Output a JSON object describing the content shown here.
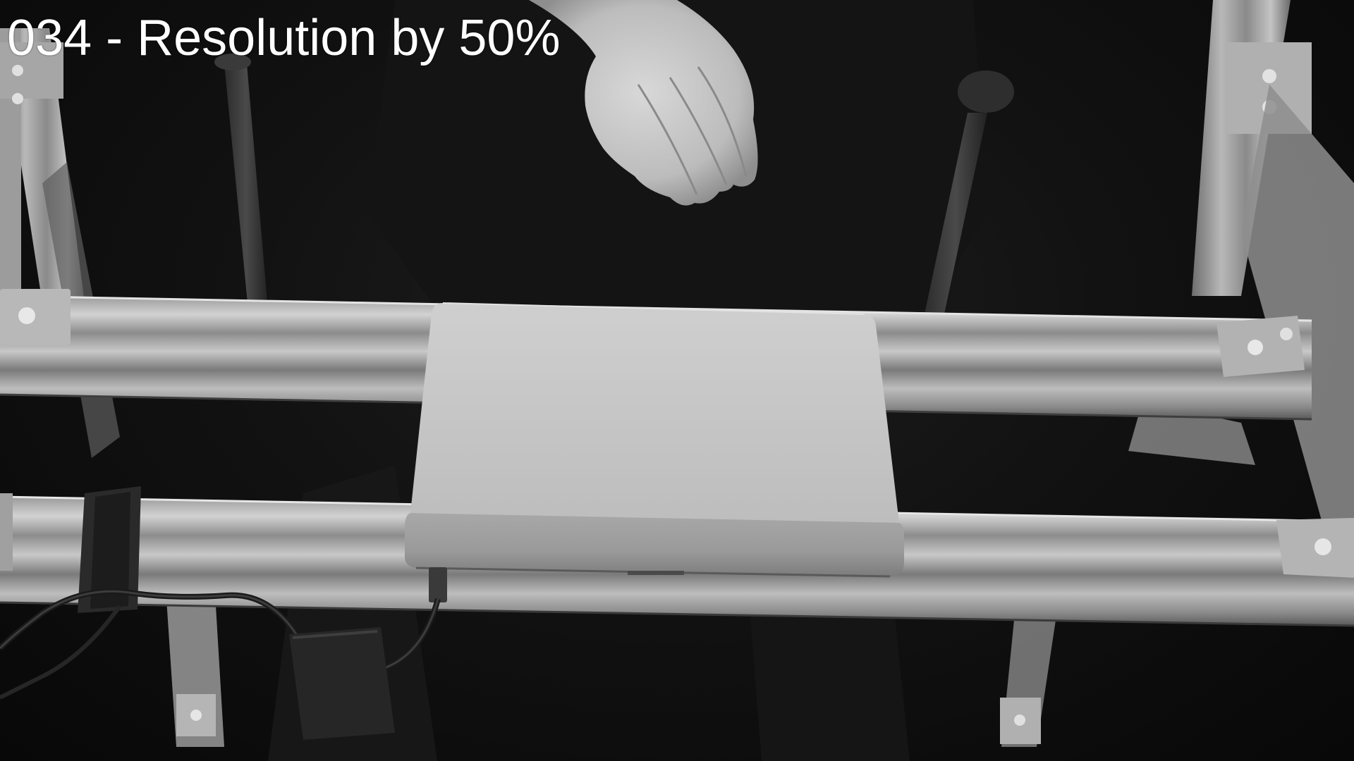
{
  "overlay": {
    "caption": "034 - Resolution by 50%"
  },
  "scene": {
    "color_mode": "grayscale",
    "subjects": [
      "hand",
      "trackpad",
      "aluminum-rail-frame",
      "usb-cable",
      "velcro-strap"
    ]
  },
  "colors": {
    "background": "#0b0b0b",
    "aluminum": "#b4b4b4",
    "trackpad_surface": "#c6c6c6",
    "caption_text": "#ffffff"
  }
}
